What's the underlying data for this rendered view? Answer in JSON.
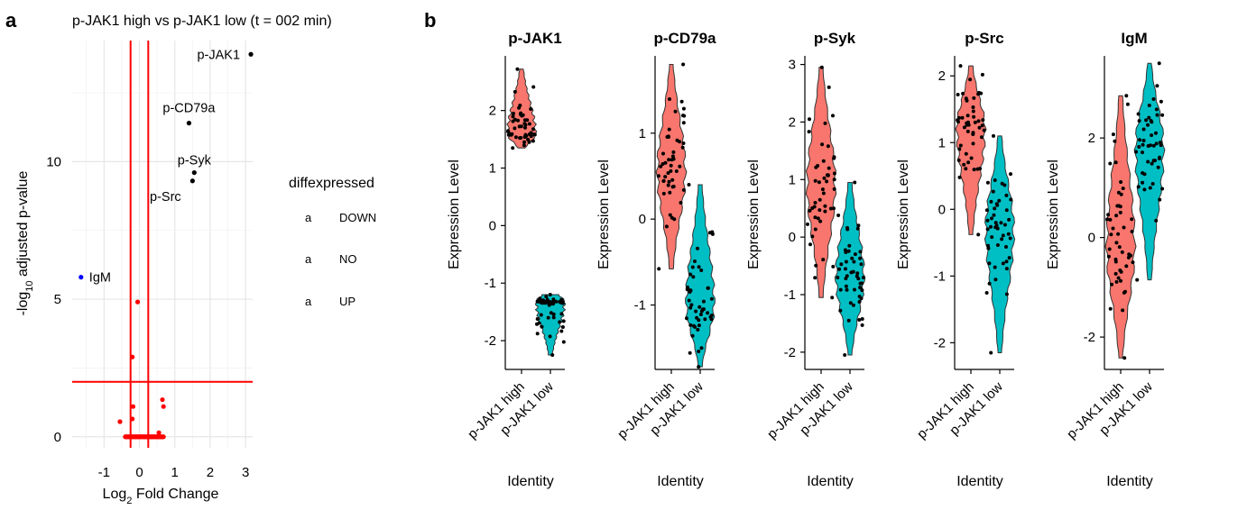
{
  "panel_a": {
    "letter": "a",
    "title": "p-JAK1 high vs p-JAK1 low (t = 002 min)",
    "xlabel_main": "Log",
    "xlabel_sub": "2",
    "xlabel_rest": " Fold Change",
    "ylabel_pre": "-log",
    "ylabel_sub": "10",
    "ylabel_rest": " adjusted p-value",
    "legend": {
      "title": "diffexpressed",
      "glyph": "a",
      "entries": [
        {
          "label": "DOWN",
          "color": "#0000FF"
        },
        {
          "label": "NO",
          "color": "#FF0000"
        },
        {
          "label": "UP",
          "color": "#000000"
        }
      ]
    }
  },
  "panel_b": {
    "letter": "b",
    "xlabel": "Identity",
    "ylabel": "Expression Level",
    "groups": [
      "p-JAK1 high",
      "p-JAK1 low"
    ],
    "colors": {
      "high": "#F8766D",
      "low": "#00BFC4"
    }
  },
  "chart_data": [
    {
      "type": "scatter",
      "title": "p-JAK1 high vs p-JAK1 low (t = 002 min)",
      "xlabel": "Log2 Fold Change",
      "ylabel": "-log10 adjusted p-value",
      "xlim": [
        -1.9,
        3.2
      ],
      "ylim": [
        -0.4,
        14.4
      ],
      "xticks": [
        -1,
        0,
        1,
        2,
        3
      ],
      "yticks": [
        0,
        5,
        10
      ],
      "vlines": [
        -0.25,
        0.25
      ],
      "hline": 2,
      "grid": true,
      "legend_position": "right",
      "points": [
        {
          "x": 3.15,
          "y": 13.9,
          "label": "p-JAK1",
          "group": "UP"
        },
        {
          "x": 1.4,
          "y": 11.4,
          "label": "p-CD79a",
          "group": "UP"
        },
        {
          "x": 1.55,
          "y": 9.6,
          "label": "p-Syk",
          "group": "UP"
        },
        {
          "x": 1.5,
          "y": 9.3,
          "label": "p-Src",
          "group": "UP"
        },
        {
          "x": -1.65,
          "y": 5.8,
          "label": "IgM",
          "group": "DOWN"
        },
        {
          "x": -0.05,
          "y": 4.9,
          "label": "",
          "group": "NO"
        },
        {
          "x": -0.2,
          "y": 2.9,
          "label": "",
          "group": "NO"
        },
        {
          "x": -0.18,
          "y": 1.1,
          "label": "",
          "group": "NO"
        },
        {
          "x": -0.2,
          "y": 0.65,
          "label": "",
          "group": "NO"
        },
        {
          "x": -0.55,
          "y": 0.55,
          "label": "",
          "group": "NO"
        },
        {
          "x": 0.65,
          "y": 1.35,
          "label": "",
          "group": "NO"
        },
        {
          "x": 0.68,
          "y": 1.1,
          "label": "",
          "group": "NO"
        },
        {
          "x": 0.55,
          "y": 0.15,
          "label": "",
          "group": "NO"
        }
      ],
      "baseline_cluster": {
        "x_from": -0.4,
        "x_to": 0.68,
        "y": 0,
        "group": "NO"
      }
    },
    {
      "type": "violin",
      "title": "p-JAK1",
      "yticks": [
        -2,
        -1,
        0,
        1,
        2
      ],
      "ylim": [
        -2.5,
        2.95
      ],
      "groups": [
        {
          "name": "p-JAK1 high",
          "min": 1.35,
          "max": 2.72,
          "mode": 1.6
        },
        {
          "name": "p-JAK1 low",
          "min": -2.25,
          "max": -1.2,
          "mode": -1.35
        }
      ]
    },
    {
      "type": "violin",
      "title": "p-CD79a",
      "yticks": [
        -1,
        0,
        1
      ],
      "ylim": [
        -1.75,
        1.9
      ],
      "groups": [
        {
          "name": "p-JAK1 high",
          "min": -0.58,
          "max": 1.8,
          "mode": 0.55
        },
        {
          "name": "p-JAK1 low",
          "min": -1.72,
          "max": 0.4,
          "mode": -1.0
        }
      ]
    },
    {
      "type": "violin",
      "title": "p-Syk",
      "yticks": [
        -2,
        -1,
        0,
        1,
        2,
        3
      ],
      "ylim": [
        -2.3,
        3.15
      ],
      "groups": [
        {
          "name": "p-JAK1 high",
          "min": -1.05,
          "max": 2.95,
          "mode": 0.9
        },
        {
          "name": "p-JAK1 low",
          "min": -2.05,
          "max": 0.95,
          "mode": -0.7
        }
      ]
    },
    {
      "type": "violin",
      "title": "p-Src",
      "yticks": [
        -2,
        -1,
        0,
        1,
        2
      ],
      "ylim": [
        -2.4,
        2.3
      ],
      "groups": [
        {
          "name": "p-JAK1 high",
          "min": -0.38,
          "max": 2.15,
          "mode": 1.2
        },
        {
          "name": "p-JAK1 low",
          "min": -2.15,
          "max": 1.1,
          "mode": -0.3
        }
      ]
    },
    {
      "type": "violin",
      "title": "IgM",
      "yticks": [
        -2,
        0,
        2
      ],
      "ylim": [
        -2.65,
        3.65
      ],
      "groups": [
        {
          "name": "p-JAK1 high",
          "min": -2.42,
          "max": 2.85,
          "mode": -0.2
        },
        {
          "name": "p-JAK1 low",
          "min": -0.85,
          "max": 3.5,
          "mode": 1.8
        }
      ]
    }
  ]
}
